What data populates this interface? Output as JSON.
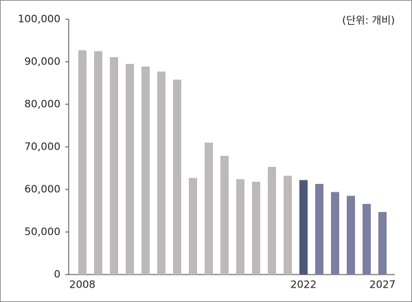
{
  "chart_data": {
    "type": "bar",
    "unit_note": "(단위: 개비)",
    "categories": [
      "2008",
      null,
      null,
      null,
      null,
      null,
      null,
      null,
      null,
      null,
      null,
      null,
      null,
      null,
      "2022",
      null,
      null,
      null,
      null,
      "2027"
    ],
    "values": [
      92700,
      92500,
      91100,
      89500,
      88900,
      87700,
      85800,
      62700,
      71000,
      67900,
      62400,
      61800,
      65300,
      63200,
      62200,
      61300,
      59400,
      58500,
      56600,
      54700
    ],
    "colors": [
      "#bdb9b9",
      "#bdb9b9",
      "#bdb9b9",
      "#bdb9b9",
      "#bdb9b9",
      "#bdb9b9",
      "#bdb9b9",
      "#bdb9b9",
      "#bdb9b9",
      "#bdb9b9",
      "#bdb9b9",
      "#bdb9b9",
      "#bdb9b9",
      "#bdb9b9",
      "#4c5a78",
      "#7b80a0",
      "#7b80a0",
      "#7b80a0",
      "#7b80a0",
      "#7b80a0"
    ],
    "ylim": [
      0,
      100000
    ],
    "axis_break": [
      0,
      40000
    ],
    "yticks": [
      0,
      {
        "value": 50000,
        "label": "50,000"
      },
      {
        "value": 60000,
        "label": "60,000"
      },
      {
        "value": 70000,
        "label": "70,000"
      },
      {
        "value": 80000,
        "label": "80,000"
      },
      {
        "value": 90000,
        "label": "90,000"
      },
      {
        "value": 100000,
        "label": "100,000"
      }
    ]
  }
}
